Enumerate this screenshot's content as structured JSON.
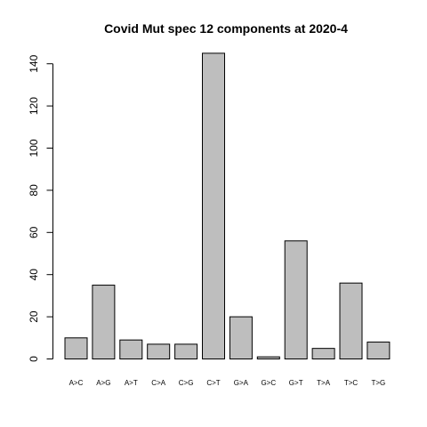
{
  "chart_data": {
    "type": "bar",
    "title": "Covid Mut spec 12 components at 2020-4",
    "xlabel": "",
    "ylabel": "",
    "categories": [
      "A>C",
      "A>G",
      "A>T",
      "C>A",
      "C>G",
      "C>T",
      "G>A",
      "G>C",
      "G>T",
      "T>A",
      "T>C",
      "T>G"
    ],
    "values": [
      10,
      35,
      9,
      7,
      7,
      145,
      20,
      1,
      56,
      5,
      36,
      8
    ],
    "yticks": [
      0,
      20,
      40,
      60,
      80,
      100,
      120,
      140
    ],
    "ylim": [
      0,
      145
    ],
    "grid": false,
    "legend": "none",
    "bar_color": "#bebebe"
  }
}
